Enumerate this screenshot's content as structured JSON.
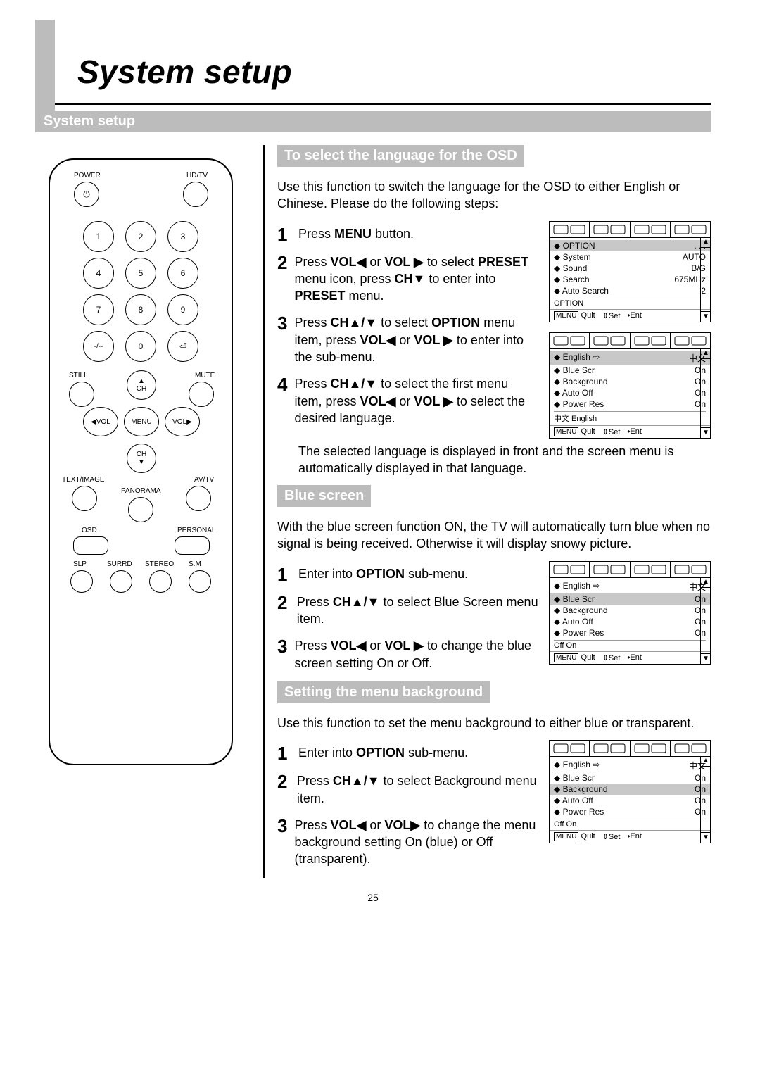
{
  "page_number": "25",
  "main_title": "System setup",
  "section_bar": "System setup",
  "sections": {
    "osd_lang": {
      "heading": "To select the language for the OSD",
      "intro": "Use this function to switch the language for the OSD to either English or Chinese. Please do the following steps:",
      "steps": [
        "Press <b>MENU</b> button.",
        "Press <b>VOL◀</b> or <b>VOL ▶</b> to select <b>PRESET</b> menu icon, press <b>CH▼</b> to enter into <b>PRESET</b> menu.",
        "Press <b>CH▲/▼</b> to select <b>OPTION</b> menu item, press <b>VOL◀</b> or <b>VOL ▶</b> to enter into the sub-menu.",
        "Press <b>CH▲/▼</b> to select the first menu item, press <b>VOL◀</b> or <b>VOL ▶</b> to select the desired language."
      ],
      "note": "The selected language is displayed in front and the screen menu is automatically displayed in that language."
    },
    "blue": {
      "heading": "Blue screen",
      "intro": "With the blue screen function ON, the TV will automatically turn blue when no signal is being received. Otherwise it will display snowy picture.",
      "steps": [
        "Enter into <b>OPTION</b> sub-menu.",
        "Press <b>CH▲/▼</b> to select Blue Screen menu item.",
        "Press <b>VOL◀</b> or <b>VOL ▶</b> to change the blue screen setting On or Off."
      ]
    },
    "bg": {
      "heading": "Setting the menu background",
      "intro": "Use this function to set the menu background to either blue or transparent.",
      "steps": [
        "Enter into <b>OPTION</b> sub-menu.",
        "Press <b>CH▲/▼</b> to select Background menu item.",
        "Press <b>VOL◀</b> or <b>VOL▶</b> to change the menu background setting On (blue) or Off (transparent)."
      ]
    }
  },
  "osd_menus": {
    "preset": {
      "rows": [
        [
          "OPTION",
          ". . ."
        ],
        [
          "System",
          "AUTO"
        ],
        [
          "Sound",
          "B/G"
        ],
        [
          "Search",
          "675MHz"
        ],
        [
          "Auto Search",
          "2"
        ]
      ],
      "highlight_index": 0,
      "footer1": "OPTION",
      "footer2": [
        "Quit",
        "⇕Set",
        "⬩Ent"
      ]
    },
    "option_lang": {
      "rows": [
        [
          "English ⇨",
          "中文"
        ],
        [
          "Blue Scr",
          "On"
        ],
        [
          "Background",
          "On"
        ],
        [
          "Auto Off",
          "On"
        ],
        [
          "Power Res",
          "On"
        ]
      ],
      "highlight_index": 0,
      "footer1": "中文  English",
      "footer2": [
        "Quit",
        "⇕Set",
        "⬩Ent"
      ]
    },
    "option_blue": {
      "rows": [
        [
          "English ⇨",
          "中文"
        ],
        [
          "Blue Scr",
          "On"
        ],
        [
          "Background",
          "On"
        ],
        [
          "Auto Off",
          "On"
        ],
        [
          "Power Res",
          "On"
        ]
      ],
      "highlight_index": 1,
      "footer1": "Off  On",
      "footer2": [
        "Quit",
        "⇕Set",
        "⬩Ent"
      ]
    },
    "option_bg": {
      "rows": [
        [
          "English ⇨",
          "中文"
        ],
        [
          "Blue Scr",
          "On"
        ],
        [
          "Background",
          "On"
        ],
        [
          "Auto Off",
          "On"
        ],
        [
          "Power Res",
          "On"
        ]
      ],
      "highlight_index": 2,
      "footer1": "Off  On",
      "footer2": [
        "Quit",
        "⇕Set",
        "⬩Ent"
      ]
    }
  },
  "remote": {
    "labels": {
      "power": "POWER",
      "hdtv": "HD/TV",
      "still": "STILL",
      "mute": "MUTE",
      "ch_up": "▲",
      "ch_up_lbl": "CH",
      "ch_dn": "▼",
      "ch_dn_lbl": "CH",
      "vol_l": "◀VOL",
      "vol_r": "VOL▶",
      "menu": "MENU",
      "text": "TEXT/IMAGE",
      "avtv": "AV/TV",
      "panorama": "PANORAMA",
      "osd": "OSD",
      "personal": "PERSONAL",
      "slp": "SLP",
      "surrd": "SURRD",
      "stereo": "STEREO",
      "sm": "S.M"
    },
    "digits": [
      "1",
      "2",
      "3",
      "4",
      "5",
      "6",
      "7",
      "8",
      "9",
      "-/--",
      "0",
      "⏎"
    ]
  }
}
